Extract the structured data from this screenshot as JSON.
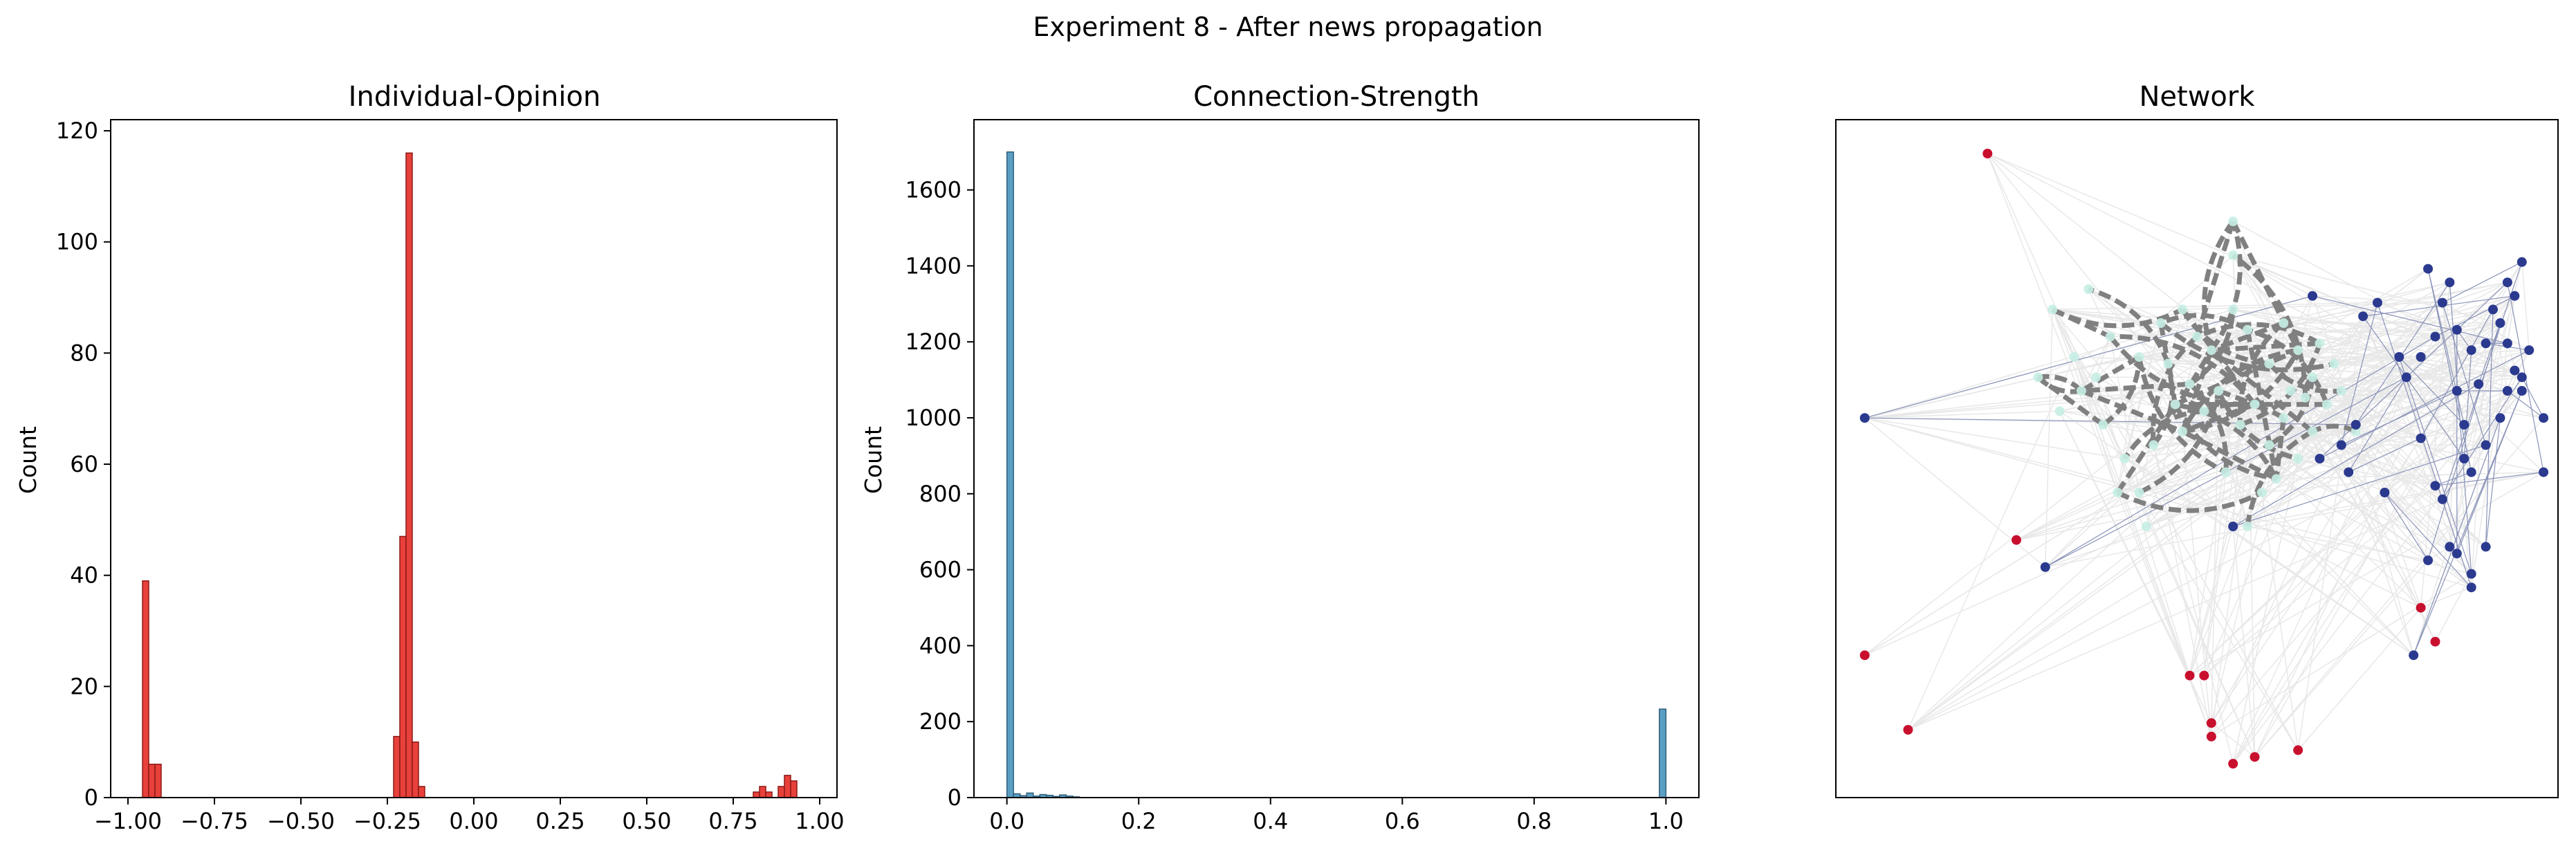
{
  "figure_title": "Experiment 8 - After news propagation",
  "colors": {
    "opinion_bar_fill": "#e8403a",
    "opinion_bar_edge": "#8b1a17",
    "strength_bar_fill": "#5b9fc4",
    "strength_bar_edge": "#2f5f7a",
    "node_positive": "#2b3a8f",
    "node_negative": "#c8102e",
    "node_neutral": "#c7eee4",
    "edge_strong": "#808080",
    "edge_weak": "#e8e8e8",
    "edge_blue": "#8a93b8"
  },
  "chart_data": [
    {
      "type": "bar",
      "title": "Individual-Opinion",
      "xlabel": "",
      "ylabel": "Count",
      "xlim": [
        -1.05,
        1.05
      ],
      "ylim": [
        0,
        122
      ],
      "xticks": [
        -1.0,
        -0.75,
        -0.5,
        -0.25,
        0.0,
        0.25,
        0.5,
        0.75,
        1.0
      ],
      "xtick_labels": [
        "−1.00",
        "−0.75",
        "−0.50",
        "−0.25",
        "0.00",
        "0.25",
        "0.50",
        "0.75",
        "1.00"
      ],
      "yticks": [
        0,
        20,
        40,
        60,
        80,
        100,
        120
      ],
      "ytick_labels": [
        "0",
        "20",
        "40",
        "60",
        "80",
        "100",
        "120"
      ],
      "bin_width": 0.018,
      "bins": [
        {
          "x": -0.958,
          "count": 39
        },
        {
          "x": -0.94,
          "count": 6
        },
        {
          "x": -0.922,
          "count": 6
        },
        {
          "x": -0.232,
          "count": 11
        },
        {
          "x": -0.214,
          "count": 47
        },
        {
          "x": -0.196,
          "count": 116
        },
        {
          "x": -0.178,
          "count": 10
        },
        {
          "x": -0.16,
          "count": 2
        },
        {
          "x": 0.808,
          "count": 1
        },
        {
          "x": 0.826,
          "count": 2
        },
        {
          "x": 0.844,
          "count": 1
        },
        {
          "x": 0.88,
          "count": 2
        },
        {
          "x": 0.898,
          "count": 4
        },
        {
          "x": 0.916,
          "count": 3
        }
      ]
    },
    {
      "type": "bar",
      "title": "Connection-Strength",
      "xlabel": "",
      "ylabel": "Count",
      "xlim": [
        -0.05,
        1.05
      ],
      "ylim": [
        0,
        1785
      ],
      "xticks": [
        0.0,
        0.2,
        0.4,
        0.6,
        0.8,
        1.0
      ],
      "xtick_labels": [
        "0.0",
        "0.2",
        "0.4",
        "0.6",
        "0.8",
        "1.0"
      ],
      "yticks": [
        0,
        200,
        400,
        600,
        800,
        1000,
        1200,
        1400,
        1600
      ],
      "ytick_labels": [
        "0",
        "200",
        "400",
        "600",
        "800",
        "1000",
        "1200",
        "1400",
        "1600"
      ],
      "bin_width": 0.01,
      "bins": [
        {
          "x": 0.0,
          "count": 1700
        },
        {
          "x": 0.01,
          "count": 10
        },
        {
          "x": 0.02,
          "count": 5
        },
        {
          "x": 0.03,
          "count": 12
        },
        {
          "x": 0.04,
          "count": 4
        },
        {
          "x": 0.05,
          "count": 8
        },
        {
          "x": 0.06,
          "count": 6
        },
        {
          "x": 0.07,
          "count": 3
        },
        {
          "x": 0.08,
          "count": 7
        },
        {
          "x": 0.09,
          "count": 4
        },
        {
          "x": 0.1,
          "count": 2
        },
        {
          "x": 0.99,
          "count": 233
        }
      ]
    },
    {
      "type": "scatter",
      "title": "Network",
      "xlabel": "",
      "ylabel": "",
      "xlim": [
        0,
        100
      ],
      "ylim": [
        0,
        100
      ],
      "red_nodes": [
        [
          21,
          95
        ],
        [
          4,
          21
        ],
        [
          10,
          10
        ],
        [
          25,
          38
        ],
        [
          49,
          18
        ],
        [
          51,
          18
        ],
        [
          52,
          11
        ],
        [
          52,
          9
        ],
        [
          55,
          5
        ],
        [
          58,
          6
        ],
        [
          64,
          7
        ],
        [
          81,
          28
        ],
        [
          83,
          23
        ]
      ],
      "blue_nodes": [
        [
          4,
          56
        ],
        [
          29,
          34
        ],
        [
          55,
          40
        ],
        [
          66,
          74
        ],
        [
          73,
          71
        ],
        [
          75,
          73
        ],
        [
          78,
          65
        ],
        [
          79,
          62
        ],
        [
          81,
          65
        ],
        [
          82,
          78
        ],
        [
          83,
          68
        ],
        [
          84,
          73
        ],
        [
          85,
          76
        ],
        [
          86,
          69
        ],
        [
          86,
          60
        ],
        [
          87,
          55
        ],
        [
          88,
          66
        ],
        [
          89,
          61
        ],
        [
          90,
          67
        ],
        [
          91,
          72
        ],
        [
          92,
          70
        ],
        [
          93,
          76
        ],
        [
          94,
          74
        ],
        [
          95,
          79
        ],
        [
          93,
          67
        ],
        [
          94,
          63
        ],
        [
          95,
          62
        ],
        [
          96,
          66
        ],
        [
          92,
          56
        ],
        [
          90,
          52
        ],
        [
          88,
          48
        ],
        [
          87,
          50
        ],
        [
          84,
          44
        ],
        [
          83,
          46
        ],
        [
          81,
          53
        ],
        [
          76,
          45
        ],
        [
          72,
          55
        ],
        [
          71,
          48
        ],
        [
          70,
          52
        ],
        [
          67,
          50
        ],
        [
          80,
          21
        ],
        [
          82,
          35
        ],
        [
          85,
          37
        ],
        [
          86,
          36
        ],
        [
          88,
          31
        ],
        [
          88,
          33
        ],
        [
          90,
          37
        ],
        [
          98,
          56
        ],
        [
          98,
          48
        ],
        [
          95,
          60
        ],
        [
          93,
          60
        ]
      ],
      "neutral_nodes": [
        [
          30,
          72
        ],
        [
          35,
          75
        ],
        [
          38,
          68
        ],
        [
          42,
          65
        ],
        [
          45,
          70
        ],
        [
          48,
          72
        ],
        [
          50,
          68
        ],
        [
          52,
          66
        ],
        [
          55,
          72
        ],
        [
          57,
          69
        ],
        [
          60,
          64
        ],
        [
          62,
          70
        ],
        [
          64,
          66
        ],
        [
          66,
          62
        ],
        [
          68,
          58
        ],
        [
          70,
          60
        ],
        [
          72,
          54
        ],
        [
          34,
          60
        ],
        [
          37,
          55
        ],
        [
          40,
          50
        ],
        [
          42,
          45
        ],
        [
          44,
          52
        ],
        [
          47,
          58
        ],
        [
          49,
          61
        ],
        [
          51,
          57
        ],
        [
          53,
          60
        ],
        [
          56,
          55
        ],
        [
          58,
          58
        ],
        [
          60,
          52
        ],
        [
          62,
          56
        ],
        [
          64,
          50
        ],
        [
          66,
          54
        ],
        [
          55,
          85
        ],
        [
          55,
          80
        ],
        [
          33,
          65
        ],
        [
          36,
          62
        ],
        [
          46,
          64
        ],
        [
          48,
          54
        ],
        [
          54,
          48
        ],
        [
          59,
          45
        ],
        [
          63,
          60
        ],
        [
          67,
          67
        ],
        [
          28,
          62
        ],
        [
          31,
          57
        ],
        [
          39,
          45
        ],
        [
          43,
          40
        ],
        [
          57,
          40
        ],
        [
          61,
          47
        ],
        [
          65,
          59
        ],
        [
          69,
          64
        ]
      ]
    }
  ]
}
